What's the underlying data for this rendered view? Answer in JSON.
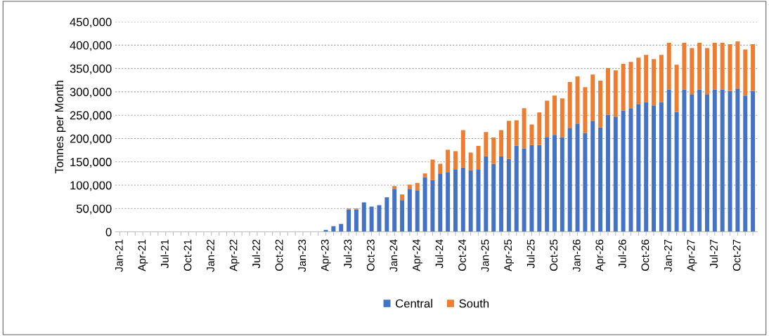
{
  "chart_data": {
    "type": "bar",
    "stacked": true,
    "ylabel": "Tonnes per Month",
    "categories": [
      "Jan-21",
      null,
      null,
      "Apr-21",
      null,
      null,
      "Jul-21",
      null,
      null,
      "Oct-21",
      null,
      null,
      "Jan-22",
      null,
      null,
      "Apr-22",
      null,
      null,
      "Jul-22",
      null,
      null,
      "Oct-22",
      null,
      null,
      "Jan-23",
      null,
      null,
      "Apr-23",
      null,
      null,
      "Jul-23",
      null,
      null,
      "Oct-23",
      null,
      null,
      "Jan-24",
      null,
      null,
      "Apr-24",
      null,
      null,
      "Jul-24",
      null,
      null,
      "Oct-24",
      null,
      null,
      "Jan-25",
      null,
      null,
      "Apr-25",
      null,
      null,
      "Jul-25",
      null,
      null,
      "Oct-25",
      null,
      null,
      "Jan-26",
      null,
      null,
      "Apr-26",
      null,
      null,
      "Jul-26",
      null,
      null,
      "Oct-26",
      null,
      null,
      "Jan-27",
      null,
      null,
      "Apr-27",
      null,
      null,
      "Jul-27",
      null,
      null,
      "Oct-27",
      null,
      null
    ],
    "series": [
      {
        "name": "Central",
        "color": "#4472c4",
        "values": [
          0,
          0,
          0,
          0,
          0,
          0,
          0,
          0,
          0,
          0,
          0,
          0,
          0,
          0,
          0,
          0,
          0,
          0,
          0,
          0,
          0,
          0,
          0,
          0,
          0,
          0,
          0,
          4000,
          12000,
          17000,
          48000,
          48000,
          63000,
          54000,
          57000,
          74000,
          92000,
          68000,
          92000,
          89000,
          117000,
          111000,
          125000,
          127000,
          134000,
          138000,
          132000,
          134000,
          162000,
          146000,
          162000,
          156000,
          185000,
          179000,
          186000,
          186000,
          202000,
          208000,
          203000,
          223000,
          232000,
          212000,
          238000,
          224000,
          251000,
          247000,
          260000,
          265000,
          274000,
          278000,
          271000,
          278000,
          305000,
          257000,
          305000,
          295000,
          305000,
          295000,
          305000,
          305000,
          302000,
          307000,
          292000,
          302000
        ]
      },
      {
        "name": "South",
        "color": "#ed7d31",
        "values": [
          0,
          0,
          0,
          0,
          0,
          0,
          0,
          0,
          0,
          0,
          0,
          0,
          0,
          0,
          0,
          0,
          0,
          0,
          0,
          0,
          0,
          0,
          0,
          0,
          0,
          0,
          0,
          0,
          0,
          0,
          2000,
          2000,
          0,
          0,
          0,
          0,
          6000,
          12000,
          9000,
          16000,
          8000,
          44000,
          21000,
          49000,
          39000,
          80000,
          38000,
          50000,
          52000,
          56000,
          56000,
          82000,
          54000,
          86000,
          44000,
          70000,
          79000,
          84000,
          83000,
          98000,
          101000,
          98000,
          99000,
          100000,
          100000,
          99000,
          100000,
          99000,
          99000,
          101000,
          99000,
          101000,
          100000,
          101000,
          100000,
          99000,
          100000,
          99000,
          100000,
          100000,
          100000,
          101000,
          99000,
          100000
        ]
      }
    ],
    "ylim": [
      0,
      450000
    ],
    "yticks": [
      {
        "value": 0,
        "label": "0"
      },
      {
        "value": 50000,
        "label": "50,000"
      },
      {
        "value": 100000,
        "label": "100,000"
      },
      {
        "value": 150000,
        "label": "150,000"
      },
      {
        "value": 200000,
        "label": "200,000"
      },
      {
        "value": 250000,
        "label": "250,000"
      },
      {
        "value": 300000,
        "label": "300,000"
      },
      {
        "value": 350000,
        "label": "350,000"
      },
      {
        "value": 400000,
        "label": "400,000"
      },
      {
        "value": 450000,
        "label": "450,000"
      }
    ],
    "grid": "y",
    "legend": "bottom"
  }
}
